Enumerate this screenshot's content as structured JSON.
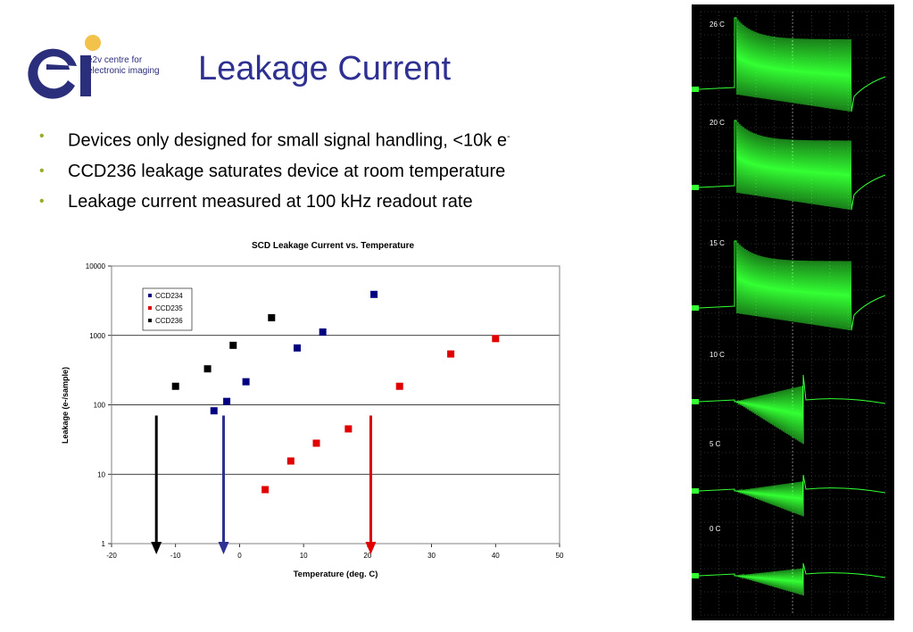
{
  "header": {
    "title": "Leakage Current",
    "logo_text_line1": "e2v centre for",
    "logo_text_line2": "electronic imaging",
    "logo_letters": "ei"
  },
  "bullets": [
    {
      "text": "Devices only designed for small signal handling, <10k e",
      "sup": "-"
    },
    {
      "text": "CCD236 leakage saturates device at room temperature",
      "sup": ""
    },
    {
      "text": "Leakage current measured at 100 kHz readout rate",
      "sup": ""
    }
  ],
  "colors": {
    "title": "#2e3192",
    "bullet": "#9aaa2a",
    "ccd234": "#000080",
    "ccd235": "#e00000",
    "ccd236": "#000000",
    "scope_trace": "#33ff33"
  },
  "chart_data": {
    "type": "scatter",
    "title": "SCD Leakage Current vs. Temperature",
    "xlabel": "Temperature (deg. C)",
    "ylabel": "Leakage (e-/sample)",
    "xlim": [
      -20,
      50
    ],
    "ylim": [
      1,
      10000
    ],
    "yscale": "log",
    "x_ticks": [
      "-20",
      "-10",
      "0",
      "10",
      "20",
      "30",
      "40",
      "50"
    ],
    "y_ticks": [
      "1",
      "10",
      "100",
      "1000",
      "10000"
    ],
    "grid": "horizontal",
    "legend": "top-left",
    "series": [
      {
        "name": "CCD234",
        "color": "#000080",
        "points": [
          [
            -4,
            82
          ],
          [
            -2,
            112
          ],
          [
            1,
            215
          ],
          [
            9,
            660
          ],
          [
            13,
            1120
          ],
          [
            21,
            3900
          ]
        ]
      },
      {
        "name": "CCD235",
        "color": "#e00000",
        "points": [
          [
            4,
            6
          ],
          [
            8,
            15.5
          ],
          [
            12,
            28
          ],
          [
            17,
            45
          ],
          [
            25,
            185
          ],
          [
            33,
            540
          ],
          [
            40,
            900
          ]
        ]
      },
      {
        "name": "CCD236",
        "color": "#000000",
        "points": [
          [
            -10,
            185
          ],
          [
            -5,
            330
          ],
          [
            -1,
            720
          ],
          [
            5,
            1800
          ]
        ]
      }
    ],
    "arrows": [
      {
        "x": -13,
        "color": "#000000"
      },
      {
        "x": -2.5,
        "color": "#2e3192"
      },
      {
        "x": 20.5,
        "color": "#e00000"
      }
    ]
  },
  "scope": {
    "labels": [
      "26 C",
      "20 C",
      "15 C",
      "10 C",
      "5 C",
      "0 C"
    ]
  }
}
